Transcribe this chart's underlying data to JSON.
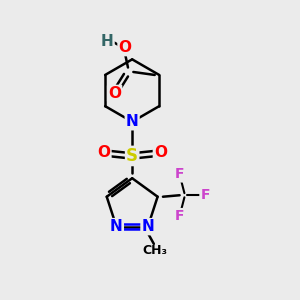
{
  "background_color": "#ebebeb",
  "bond_color": "#000000",
  "N_color": "#0000ff",
  "O_color": "#ff0000",
  "S_color": "#cccc00",
  "F_color": "#cc44cc",
  "H_color": "#336666",
  "C_color": "#000000",
  "xlim": [
    0,
    10
  ],
  "ylim": [
    0,
    10
  ]
}
